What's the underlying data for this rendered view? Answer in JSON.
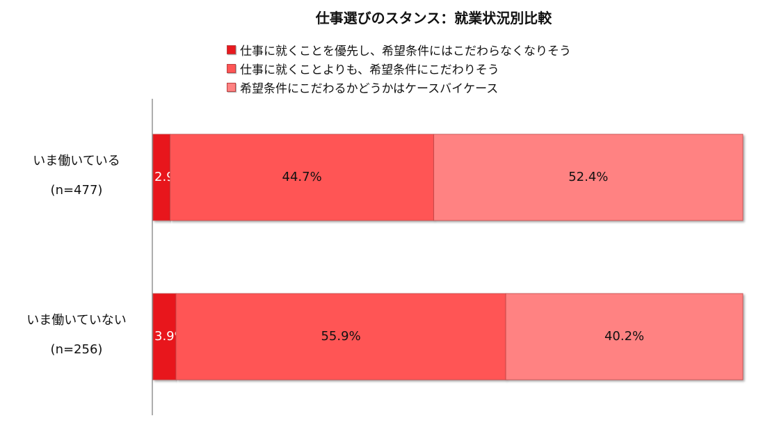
{
  "chart_data": {
    "type": "bar",
    "orientation": "horizontal",
    "stacked": true,
    "percent_stacked": true,
    "title": "仕事選びのスタンス：就業状況別比較",
    "categories": [
      {
        "label": "いま働いている",
        "n": "(n=477)"
      },
      {
        "label": "いま働いていない",
        "n": "(n=256)"
      }
    ],
    "series": [
      {
        "name": "仕事に就くことを優先し、希望条件にはこだわらなくなりそう",
        "color": "#e8191f",
        "values": [
          2.9,
          3.9
        ],
        "labels": [
          "2.9%",
          "3.9%"
        ],
        "label_color": "#ffffff"
      },
      {
        "name": "仕事に就くことよりも、希望条件にこだわりそう",
        "color": "#ff5555",
        "values": [
          44.7,
          55.9
        ],
        "labels": [
          "44.7%",
          "55.9%"
        ],
        "label_color": "#111111"
      },
      {
        "name": "希望条件にこだわるかどうかはケースバイケース",
        "color": "#ff8282",
        "values": [
          52.4,
          40.2
        ],
        "labels": [
          "52.4%",
          "40.2%"
        ],
        "label_color": "#111111"
      }
    ],
    "xlim": [
      0,
      100
    ],
    "grid": false,
    "legend_position": "top"
  }
}
